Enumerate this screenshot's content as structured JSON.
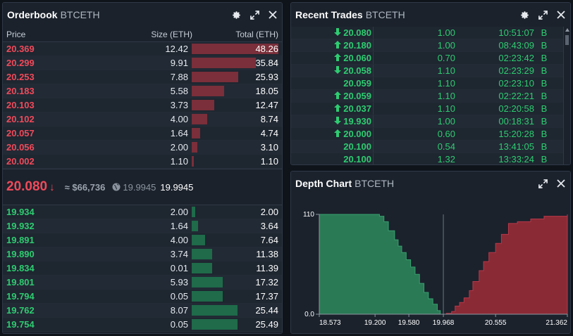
{
  "orderbook": {
    "title": "Orderbook",
    "pair": "BTCETH",
    "col_price": "Price",
    "col_size": "Size (ETH)",
    "col_total": "Total (ETH)",
    "asks": [
      {
        "price": "20.369",
        "size": "12.42",
        "total": "48.26",
        "depth": 1.0
      },
      {
        "price": "20.299",
        "size": "9.91",
        "total": "35.84",
        "depth": 0.743
      },
      {
        "price": "20.253",
        "size": "7.88",
        "total": "25.93",
        "depth": 0.537
      },
      {
        "price": "20.183",
        "size": "5.58",
        "total": "18.05",
        "depth": 0.374
      },
      {
        "price": "20.103",
        "size": "3.73",
        "total": "12.47",
        "depth": 0.258
      },
      {
        "price": "20.102",
        "size": "4.00",
        "total": "8.74",
        "depth": 0.181
      },
      {
        "price": "20.057",
        "size": "1.64",
        "total": "4.74",
        "depth": 0.098
      },
      {
        "price": "20.056",
        "size": "2.00",
        "total": "3.10",
        "depth": 0.064
      },
      {
        "price": "20.002",
        "size": "1.10",
        "total": "1.10",
        "depth": 0.023
      }
    ],
    "last_price": "20.080",
    "last_arrow": "↓",
    "usd_value": "≈ $66,736",
    "index_price": "19.9945",
    "mark_price": "19.9945",
    "bids": [
      {
        "price": "19.934",
        "size": "2.00",
        "total": "2.00",
        "depth": 0.041
      },
      {
        "price": "19.932",
        "size": "1.64",
        "total": "3.64",
        "depth": 0.075
      },
      {
        "price": "19.891",
        "size": "4.00",
        "total": "7.64",
        "depth": 0.158
      },
      {
        "price": "19.890",
        "size": "3.74",
        "total": "11.38",
        "depth": 0.236
      },
      {
        "price": "19.834",
        "size": "0.01",
        "total": "11.39",
        "depth": 0.236
      },
      {
        "price": "19.801",
        "size": "5.93",
        "total": "17.32",
        "depth": 0.359
      },
      {
        "price": "19.794",
        "size": "0.05",
        "total": "17.37",
        "depth": 0.36
      },
      {
        "price": "19.762",
        "size": "8.07",
        "total": "25.44",
        "depth": 0.527
      },
      {
        "price": "19.754",
        "size": "0.05",
        "total": "25.49",
        "depth": 0.528
      }
    ]
  },
  "trades": {
    "title": "Recent Trades",
    "pair": "BTCETH",
    "rows": [
      {
        "dir": "down",
        "price": "20.080",
        "size": "1.00",
        "time": "10:51:07",
        "side": "B"
      },
      {
        "dir": "up",
        "price": "20.180",
        "size": "1.00",
        "time": "08:43:09",
        "side": "B"
      },
      {
        "dir": "up",
        "price": "20.060",
        "size": "0.70",
        "time": "02:23:42",
        "side": "B"
      },
      {
        "dir": "down",
        "price": "20.058",
        "size": "1.10",
        "time": "02:23:29",
        "side": "B"
      },
      {
        "dir": "none",
        "price": "20.059",
        "size": "1.10",
        "time": "02:23:10",
        "side": "B"
      },
      {
        "dir": "up",
        "price": "20.059",
        "size": "1.10",
        "time": "02:22:21",
        "side": "B"
      },
      {
        "dir": "up",
        "price": "20.037",
        "size": "1.10",
        "time": "02:20:58",
        "side": "B"
      },
      {
        "dir": "down",
        "price": "19.930",
        "size": "1.00",
        "time": "00:18:31",
        "side": "B"
      },
      {
        "dir": "up",
        "price": "20.000",
        "size": "0.60",
        "time": "15:20:28",
        "side": "B"
      },
      {
        "dir": "none",
        "price": "20.100",
        "size": "0.54",
        "time": "13:41:05",
        "side": "B"
      },
      {
        "dir": "none",
        "price": "20.100",
        "size": "1.32",
        "time": "13:33:24",
        "side": "B"
      }
    ]
  },
  "depth": {
    "title": "Depth Chart",
    "pair": "BTCETH"
  },
  "chart_data": {
    "type": "area",
    "title": "Depth Chart",
    "ylim": [
      0,
      110
    ],
    "y_ticks": [
      "110",
      "0.0"
    ],
    "xlim": [
      18.573,
      21.362
    ],
    "x_ticks": [
      "18.573",
      "19.200",
      "19.580",
      "19.968",
      "20.555",
      "21.362"
    ],
    "mid": 19.968,
    "series": [
      {
        "color": "#2a7a55",
        "x": [
          18.573,
          19.2,
          19.25,
          19.3,
          19.35,
          19.42,
          19.46,
          19.5,
          19.55,
          19.6,
          19.65,
          19.7,
          19.75,
          19.8,
          19.85,
          19.9,
          19.934
        ],
        "y": [
          110,
          110,
          108,
          102,
          92,
          82,
          75,
          68,
          60,
          52,
          44,
          34,
          24,
          17,
          11,
          4,
          2
        ]
      },
      {
        "color": "#8a2a35",
        "x": [
          20.002,
          20.06,
          20.1,
          20.15,
          20.2,
          20.26,
          20.3,
          20.37,
          20.42,
          20.48,
          20.555,
          20.62,
          20.7,
          20.8,
          20.95,
          21.1,
          21.362
        ],
        "y": [
          1,
          3,
          9,
          13,
          18,
          26,
          36,
          48,
          58,
          68,
          78,
          88,
          100,
          102,
          105,
          108,
          110
        ]
      }
    ]
  },
  "colors": {
    "ask": "#f04a5a",
    "bid": "#2ecc71",
    "panel": "#1b222c"
  }
}
